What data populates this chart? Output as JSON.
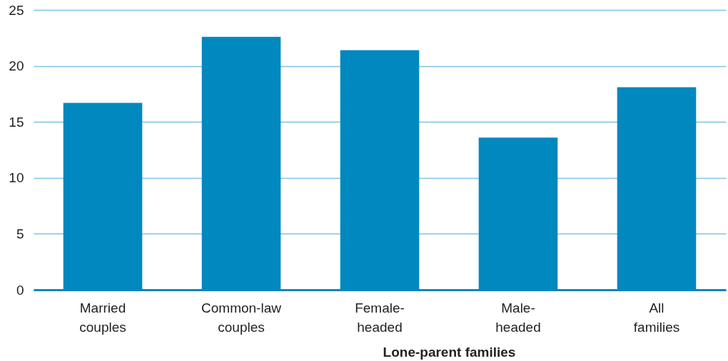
{
  "chart_data": {
    "type": "bar",
    "categories": [
      "Married couples",
      "Common-law couples",
      "Female-headed",
      "Male-headed",
      "All families"
    ],
    "values": [
      16.7,
      22.6,
      21.4,
      13.6,
      18.1
    ],
    "color": "#0088bf",
    "xlabel": "Lone-parent families",
    "ylim": [
      0,
      25
    ],
    "yticks": [
      0,
      5,
      10,
      15,
      20,
      25
    ],
    "grid": "y"
  }
}
